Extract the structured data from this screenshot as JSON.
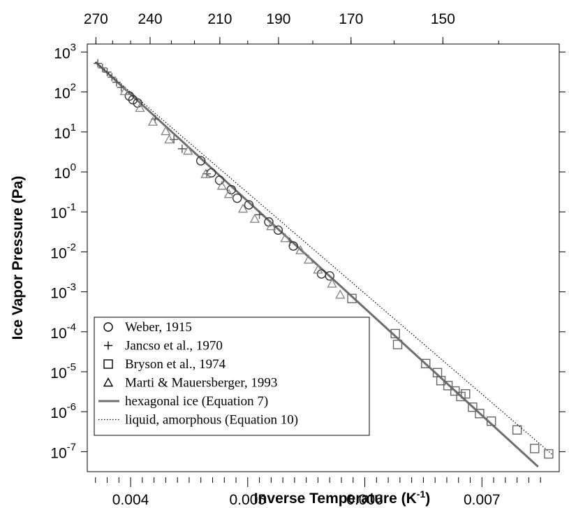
{
  "chart_data": {
    "type": "scatter",
    "xlabel": "Inverse Temperature (K",
    "xlabel_superscript": "-1",
    "xlabel_close": ")",
    "ylabel": "Ice Vapor Pressure (Pa)",
    "xlim": [
      0.00363,
      0.00766
    ],
    "ylim_log10": [
      -7.5,
      3.2
    ],
    "y_scale": "log",
    "grid": false,
    "legend_position": "bottom-left",
    "x_ticks": [
      {
        "value": 0.004,
        "label": "0.004"
      },
      {
        "value": 0.005,
        "label": "0.005"
      },
      {
        "value": 0.006,
        "label": "0.006"
      },
      {
        "value": 0.007,
        "label": "0.007"
      }
    ],
    "y_ticks": [
      {
        "exp": 3,
        "base": "10",
        "sup": "3"
      },
      {
        "exp": 2,
        "base": "10",
        "sup": "2"
      },
      {
        "exp": 1,
        "base": "10",
        "sup": "1"
      },
      {
        "exp": 0,
        "base": "10",
        "sup": "0"
      },
      {
        "exp": -1,
        "base": "10",
        "sup": "-1"
      },
      {
        "exp": -2,
        "base": "10",
        "sup": "-2"
      },
      {
        "exp": -3,
        "base": "10",
        "sup": "-3"
      },
      {
        "exp": -4,
        "base": "10",
        "sup": "-4"
      },
      {
        "exp": -5,
        "base": "10",
        "sup": "-5"
      },
      {
        "exp": -6,
        "base": "10",
        "sup": "-6"
      },
      {
        "exp": -7,
        "base": "10",
        "sup": "-7"
      }
    ],
    "top_axis": {
      "unit": "K",
      "ticks": [
        {
          "temperature": 270,
          "label": "270"
        },
        {
          "temperature": 240,
          "label": "240"
        },
        {
          "temperature": 210,
          "label": "210"
        },
        {
          "temperature": 190,
          "label": "190"
        },
        {
          "temperature": 170,
          "label": "170"
        },
        {
          "temperature": 150,
          "label": "150"
        }
      ]
    },
    "series": [
      {
        "name": "Weber, 1915",
        "marker": "circle",
        "color": "#333333",
        "points": [
          [
            0.00399,
            79
          ],
          [
            0.00402,
            64
          ],
          [
            0.00406,
            53
          ],
          [
            0.0046,
            1.9
          ],
          [
            0.00469,
            0.95
          ],
          [
            0.00476,
            0.62
          ],
          [
            0.00486,
            0.36
          ],
          [
            0.00491,
            0.22
          ],
          [
            0.00501,
            0.15
          ],
          [
            0.00518,
            0.056
          ],
          [
            0.00526,
            0.035
          ],
          [
            0.00539,
            0.014
          ],
          [
            0.00563,
            0.0028
          ],
          [
            0.0057,
            0.0025
          ]
        ]
      },
      {
        "name": "Jancso et al., 1970",
        "marker": "plus",
        "color": "#555555",
        "points": [
          [
            0.00372,
            520
          ],
          [
            0.00376,
            400
          ],
          [
            0.0038,
            315
          ],
          [
            0.00384,
            235
          ],
          [
            0.00388,
            175
          ],
          [
            0.00392,
            130
          ],
          [
            0.00421,
            21
          ],
          [
            0.00437,
            6.5
          ],
          [
            0.00444,
            3.8
          ],
          [
            0.00465,
            0.9
          ],
          [
            0.0051,
            0.085
          ],
          [
            0.00536,
            0.018
          ]
        ]
      },
      {
        "name": "Bryson et al., 1974",
        "marker": "square",
        "color": "#666666",
        "points": [
          [
            0.00589,
            0.00068
          ],
          [
            0.00626,
            9e-05
          ],
          [
            0.00628,
            4.8e-05
          ],
          [
            0.00652,
            1.6e-05
          ],
          [
            0.00662,
            9.5e-06
          ],
          [
            0.00665,
            6e-06
          ],
          [
            0.00671,
            4.5e-06
          ],
          [
            0.00677,
            3.3e-06
          ],
          [
            0.00682,
            2.4e-06
          ],
          [
            0.00686,
            2.8e-06
          ],
          [
            0.00692,
            1.3e-06
          ],
          [
            0.00698,
            9e-07
          ],
          [
            0.00708,
            5.8e-07
          ],
          [
            0.0073,
            3.5e-07
          ],
          [
            0.00745,
            1.2e-07
          ],
          [
            0.00757,
            8.8e-08
          ]
        ]
      },
      {
        "name": "Marti & Mauersberger, 1993",
        "marker": "triangle",
        "color": "#888888",
        "points": [
          [
            0.00395,
            105
          ],
          [
            0.00408,
            40
          ],
          [
            0.00419,
            18
          ],
          [
            0.0043,
            10.5
          ],
          [
            0.00433,
            6.5
          ],
          [
            0.00449,
            3.4
          ],
          [
            0.00464,
            0.88
          ],
          [
            0.00478,
            0.45
          ],
          [
            0.00484,
            0.28
          ],
          [
            0.00496,
            0.12
          ],
          [
            0.00506,
            0.067
          ],
          [
            0.0052,
            0.044
          ],
          [
            0.00532,
            0.022
          ],
          [
            0.00545,
            0.011
          ],
          [
            0.00552,
            0.0064
          ],
          [
            0.0056,
            0.0036
          ],
          [
            0.00572,
            0.0016
          ],
          [
            0.00579,
            0.00085
          ]
        ]
      },
      {
        "name": "hexagonal ice (Equation 7)",
        "marker": "none",
        "line": "solid",
        "color": "#6e6e6e",
        "points": [
          [
            0.0037,
            560
          ],
          [
            0.00748,
            4.2e-08
          ]
        ]
      },
      {
        "name": "liquid, amorphous (Equation 10)",
        "marker": "none",
        "line": "dotted",
        "color": "#000000",
        "points": [
          [
            0.0037,
            560
          ],
          [
            0.0076,
            8.5e-08
          ]
        ]
      }
    ]
  }
}
